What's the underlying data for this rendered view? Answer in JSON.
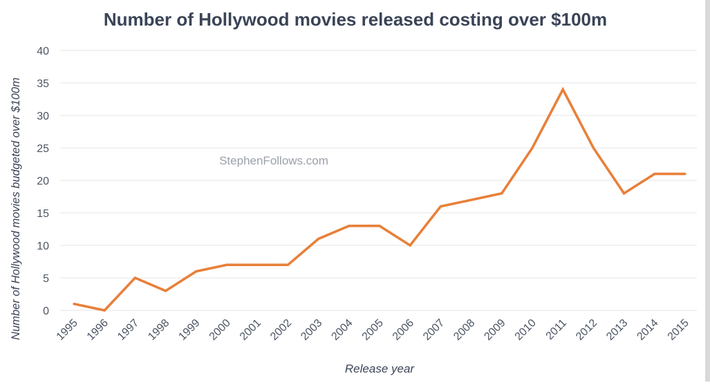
{
  "chart_data": {
    "type": "line",
    "title": "Number of Hollywood movies released costing over $100m",
    "xlabel": "Release year",
    "ylabel": "Number of Hollywood  movies budgeted  over $100m",
    "watermark": "StephenFollows.com",
    "x": [
      "1995",
      "1996",
      "1997",
      "1998",
      "1999",
      "2000",
      "2001",
      "2002",
      "2003",
      "2004",
      "2005",
      "2006",
      "2007",
      "2008",
      "2009",
      "2010",
      "2011",
      "2012",
      "2013",
      "2014",
      "2015"
    ],
    "series": [
      {
        "values": [
          1,
          0,
          5,
          3,
          6,
          7,
          7,
          7,
          11,
          13,
          13,
          10,
          16,
          17,
          18,
          25,
          34,
          25,
          18,
          21,
          21
        ],
        "color": "#e8803a"
      }
    ],
    "ylim": [
      0,
      40
    ],
    "yticks": [
      0,
      5,
      10,
      15,
      20,
      25,
      30,
      35,
      40
    ],
    "grid": true,
    "legend": "none"
  },
  "colors": {
    "title": "#3a4456",
    "tick": "#4b5563",
    "grid": "#e4e6ea",
    "watermark": "#9aa0aa",
    "line": "#e8803a"
  }
}
